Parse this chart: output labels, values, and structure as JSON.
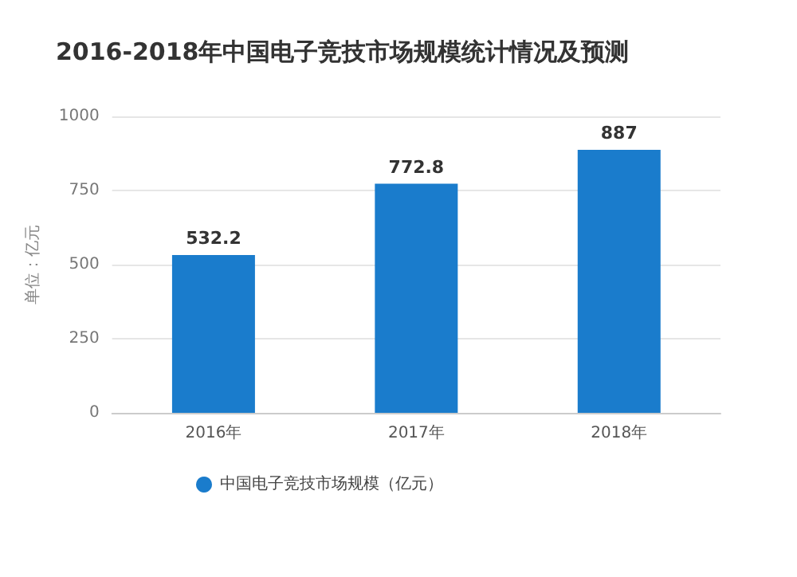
{
  "chart_data": {
    "type": "bar",
    "title": "2016-2018年中国电子竞技市场规模统计情况及预测",
    "ylabel": "单位：亿元",
    "categories": [
      "2016年",
      "2017年",
      "2018年"
    ],
    "series": [
      {
        "name": "中国电子竞技市场规模（亿元）",
        "color": "#1a7ccc",
        "values": [
          532.2,
          772.8,
          887
        ]
      }
    ],
    "ylim": [
      0,
      1000
    ],
    "yticks": [
      0,
      250,
      500,
      750,
      1000
    ],
    "grid": "y",
    "legend": "bottom left",
    "data_labels": true
  }
}
